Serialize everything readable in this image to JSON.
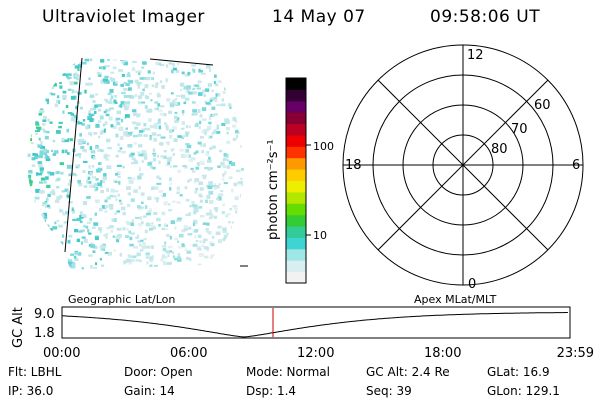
{
  "header": {
    "title": "Ultraviolet Imager",
    "date": "14 May 07",
    "time": "09:58:06 UT"
  },
  "colorbar": {
    "unit_label": "photon cm⁻²s⁻¹",
    "ticks": [
      "100",
      "10"
    ],
    "colors": [
      "#f2f2f2",
      "#d9eef0",
      "#9fe6e6",
      "#3fd4d4",
      "#33cc99",
      "#33cc33",
      "#66dd00",
      "#b3e600",
      "#eeee00",
      "#ffcc00",
      "#ff9900",
      "#ff3300",
      "#ee0000",
      "#bb0022",
      "#880033",
      "#660066",
      "#330033",
      "#000000"
    ]
  },
  "polar": {
    "mlt_labels": {
      "top": "12",
      "right": "6",
      "bottom": "0",
      "left": "18"
    },
    "lat_labels": [
      "60",
      "70",
      "80"
    ]
  },
  "timeline": {
    "left_label": "Geographic Lat/Lon",
    "right_label": "Apex  MLat/MLT",
    "y_axis_label": "GC Alt",
    "y_ticks": [
      "9.0",
      "1.8"
    ],
    "x_ticks": [
      "00:00",
      "06:00",
      "12:00",
      "18:00",
      "23:59"
    ],
    "current_time_color": "#cc0000",
    "ylim": [
      1.8,
      9.0
    ],
    "current_time_hours": 9.97
  },
  "footer": {
    "row1": {
      "flt": "Flt: LBHL",
      "door": "Door: Open",
      "mode": "Mode: Normal",
      "gcalt": "GC Alt: 2.4 Re",
      "glat": "GLat:  16.9"
    },
    "row2": {
      "ip": "IP: 36.0",
      "gain": "Gain: 14",
      "dsp": "Dsp:    1.4",
      "seq": "Seq: 39",
      "glon": "GLon: 129.1"
    }
  }
}
